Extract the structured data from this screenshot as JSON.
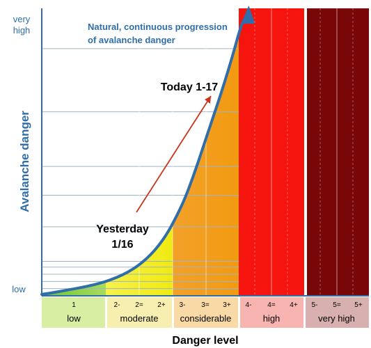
{
  "chart_data": {
    "type": "area",
    "title": "Natural, continuous progression of avalanche danger",
    "title_lines": [
      "Natural, continuous progression",
      "of avalanche danger"
    ],
    "xlabel": "Danger level",
    "ylabel": "Avalanche danger",
    "y_top_label_lines": [
      "very",
      "high"
    ],
    "y_bottom_label": "low",
    "grid": true,
    "levels": [
      {
        "name": "low",
        "sublevels": [
          "1"
        ],
        "color": "#8fd14f",
        "band_color": "#d8eea3"
      },
      {
        "name": "moderate",
        "sublevels": [
          "2-",
          "2=",
          "2+"
        ],
        "color": "#f2ef15",
        "band_color": "#f6efb0"
      },
      {
        "name": "considerable",
        "sublevels": [
          "3-",
          "3=",
          "3+"
        ],
        "color": "#f39c16",
        "band_color": "#f9d9a6"
      },
      {
        "name": "high",
        "sublevels": [
          "4-",
          "4=",
          "4+"
        ],
        "color": "#f5140e",
        "band_color": "#f8b4b0"
      },
      {
        "name": "very high",
        "sublevels": [
          "5-",
          "5=",
          "5+"
        ],
        "color": "#7a0707",
        "band_color": "#d8b0b0"
      }
    ],
    "curve": {
      "x": [
        0,
        0.5,
        1,
        1.5,
        2,
        2.5,
        3,
        3.5,
        4,
        4.5,
        5,
        5.5,
        6,
        6.5,
        7,
        7.5,
        8,
        8.5,
        9,
        9.5,
        10,
        10.5,
        10.75
      ],
      "y": [
        0.5,
        1.0,
        1.6,
        2.2,
        2.8,
        3.5,
        4.3,
        5.3,
        6.6,
        8.2,
        10.3,
        13.0,
        16.5,
        21,
        27,
        34,
        43,
        53,
        63,
        73,
        84,
        96,
        100
      ]
    },
    "gridlines_y": [
      2.5,
      5,
      7.5,
      10,
      12,
      24,
      35,
      45,
      64,
      86
    ],
    "ylim": [
      0,
      100
    ],
    "annotations": [
      {
        "text_lines": [
          "Yesterday",
          "1/16"
        ],
        "x": 5.3,
        "y": 16
      },
      {
        "text_lines": [
          "Today 1-17"
        ],
        "x": 8.3,
        "y": 72
      }
    ],
    "arrow": {
      "from": [
        7.1,
        20
      ],
      "to": [
        9.3,
        62
      ],
      "color": "#c9351c"
    }
  }
}
